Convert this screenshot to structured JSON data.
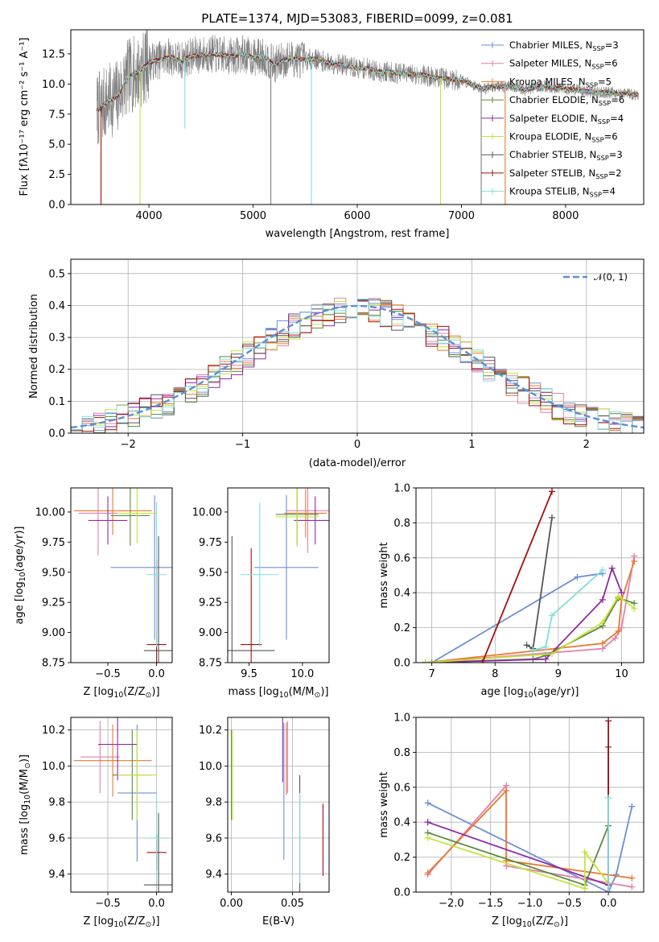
{
  "figure": {
    "title": "PLATE=1374, MJD=53083, FIBERID=0099, z=0.081"
  },
  "colors": {
    "Chabrier MILES": "#6a8fd6",
    "Salpeter MILES": "#e57fae",
    "Kroupa MILES": "#e8792d",
    "Chabrier ELODIE": "#5a8a3c",
    "Salpeter ELODIE": "#8e2aa6",
    "Kroupa ELODIE": "#c5e33a",
    "Chabrier STELIB": "#555555",
    "Salpeter STELIB": "#a01010",
    "Kroupa STELIB": "#80dede",
    "data": "#7f7f7f",
    "normal": "#5b8fd6"
  },
  "chart_data": [
    {
      "id": "spectrum",
      "type": "line",
      "title": "PLATE=1374, MJD=53083, FIBERID=0099, z=0.081",
      "xlabel": "wavelength [Angstrom, rest frame]",
      "ylabel": "Flux [fλ10⁻¹⁷ erg cm⁻² s⁻¹ A⁻¹]",
      "xlim": [
        3250,
        8750
      ],
      "ylim": [
        0,
        14.5
      ],
      "xticks": [
        4000,
        5000,
        6000,
        7000,
        8000
      ],
      "yticks": [
        0.0,
        2.5,
        5.0,
        7.5,
        10.0,
        12.5
      ],
      "grid": false,
      "legend_position": "upper right",
      "legend": [
        {
          "label": "Chabrier MILES, N",
          "sub": "SSP",
          "tail": "=3",
          "model": "Chabrier MILES"
        },
        {
          "label": "Salpeter MILES, N",
          "sub": "SSP",
          "tail": "=6",
          "model": "Salpeter MILES"
        },
        {
          "label": "Kroupa MILES, N",
          "sub": "SSP",
          "tail": "=5",
          "model": "Kroupa MILES"
        },
        {
          "label": "Chabrier ELODIE, N",
          "sub": "SSP",
          "tail": "=6",
          "model": "Chabrier ELODIE"
        },
        {
          "label": "Salpeter ELODIE, N",
          "sub": "SSP",
          "tail": "=4",
          "model": "Salpeter ELODIE"
        },
        {
          "label": "Kroupa ELODIE, N",
          "sub": "SSP",
          "tail": "=6",
          "model": "Kroupa ELODIE"
        },
        {
          "label": "Chabrier STELIB, N",
          "sub": "SSP",
          "tail": "=3",
          "model": "Chabrier STELIB"
        },
        {
          "label": "Salpeter STELIB, N",
          "sub": "SSP",
          "tail": "=2",
          "model": "Salpeter STELIB"
        },
        {
          "label": "Kroupa STELIB, N",
          "sub": "SSP",
          "tail": "=4",
          "model": "Kroupa STELIB"
        }
      ],
      "continuum": [
        [
          3500,
          7.8
        ],
        [
          3600,
          8.5
        ],
        [
          3700,
          9.0
        ],
        [
          3800,
          10.6
        ],
        [
          3900,
          11.0
        ],
        [
          4000,
          11.8
        ],
        [
          4100,
          12.0
        ],
        [
          4200,
          12.3
        ],
        [
          4300,
          11.9
        ],
        [
          4400,
          12.3
        ],
        [
          4500,
          12.4
        ],
        [
          4600,
          12.5
        ],
        [
          4700,
          12.4
        ],
        [
          4800,
          12.3
        ],
        [
          4900,
          12.5
        ],
        [
          5000,
          12.2
        ],
        [
          5100,
          12.3
        ],
        [
          5200,
          11.6
        ],
        [
          5300,
          12.0
        ],
        [
          5400,
          12.1
        ],
        [
          5500,
          12.0
        ],
        [
          5600,
          12.1
        ],
        [
          5700,
          11.8
        ],
        [
          5800,
          11.7
        ],
        [
          5900,
          11.5
        ],
        [
          6000,
          11.3
        ],
        [
          6100,
          11.3
        ],
        [
          6200,
          11.0
        ],
        [
          6300,
          11.0
        ],
        [
          6400,
          10.9
        ],
        [
          6500,
          10.8
        ],
        [
          6600,
          10.8
        ],
        [
          6700,
          10.6
        ],
        [
          6800,
          10.5
        ],
        [
          6900,
          10.4
        ],
        [
          7000,
          10.3
        ],
        [
          7100,
          10.0
        ],
        [
          7200,
          9.6
        ],
        [
          7300,
          9.8
        ],
        [
          7400,
          9.8
        ],
        [
          7500,
          9.8
        ],
        [
          7600,
          9.5
        ],
        [
          7700,
          9.7
        ],
        [
          7800,
          9.8
        ],
        [
          7900,
          9.7
        ],
        [
          8000,
          9.6
        ],
        [
          8100,
          9.5
        ],
        [
          8200,
          9.4
        ],
        [
          8300,
          9.3
        ],
        [
          8400,
          9.3
        ],
        [
          8500,
          9.2
        ],
        [
          8600,
          9.2
        ],
        [
          8700,
          9.1
        ]
      ],
      "features": [
        {
          "x": 3540,
          "y": 0.0,
          "series": "Salpeter STELIB"
        },
        {
          "x": 3915,
          "y": 0.0,
          "series": "Kroupa ELODIE"
        },
        {
          "x": 4345,
          "y": 6.3,
          "series": "Kroupa STELIB"
        },
        {
          "x": 5170,
          "y": 0.0,
          "series": "data"
        },
        {
          "x": 5560,
          "y": 0.0,
          "series": "Kroupa STELIB"
        },
        {
          "x": 6800,
          "y": 0.0,
          "series": "Kroupa ELODIE"
        },
        {
          "x": 7190,
          "y": 0.0,
          "series": "data"
        },
        {
          "x": 7420,
          "y": 0.0,
          "series": "Kroupa MILES"
        }
      ]
    },
    {
      "id": "residuals",
      "type": "line",
      "xlabel": "(data-model)/error",
      "ylabel": "Normed distribution",
      "xlim": [
        -2.5,
        2.5
      ],
      "ylim": [
        0,
        0.545
      ],
      "xticks": [
        -2,
        -1,
        0,
        1,
        2
      ],
      "yticks": [
        0.0,
        0.1,
        0.2,
        0.3,
        0.4,
        0.5
      ],
      "grid": true,
      "legend_position": "upper right",
      "normal_label": "𝒩(0, 1)",
      "bin_width": 0.1,
      "hist_series": [
        "Chabrier MILES",
        "Salpeter MILES",
        "Kroupa MILES",
        "Chabrier ELODIE",
        "Salpeter ELODIE",
        "Kroupa ELODIE",
        "Chabrier STELIB",
        "Salpeter STELIB",
        "Kroupa STELIB"
      ]
    },
    {
      "id": "age-vs-Z",
      "type": "scatter",
      "xlabel": "Z [log₁₀(Z/Z⊙)]",
      "ylabel": "age  [log₁₀(age/yr)]",
      "xlim": [
        -0.88,
        0.16
      ],
      "ylim": [
        8.75,
        10.2
      ],
      "xticks": [
        -0.5,
        0.0
      ],
      "yticks": [
        8.75,
        9.0,
        9.25,
        9.5,
        9.75,
        10.0
      ],
      "grid": false,
      "points": [
        {
          "series": "Chabrier MILES",
          "x": -0.02,
          "xerr": 0.45,
          "y": 9.54,
          "yerr": 0.6
        },
        {
          "series": "Salpeter MILES",
          "x": -0.6,
          "xerr": 0.2,
          "y": 9.99,
          "yerr": 0.35
        },
        {
          "series": "Kroupa MILES",
          "x": -0.45,
          "xerr": 0.4,
          "y": 10.01,
          "yerr": 0.2
        },
        {
          "series": "Chabrier ELODIE",
          "x": -0.27,
          "xerr": 0.2,
          "y": 9.97,
          "yerr": 0.25
        },
        {
          "series": "Salpeter ELODIE",
          "x": -0.5,
          "xerr": 0.2,
          "y": 9.93,
          "yerr": 0.2
        },
        {
          "series": "Kroupa ELODIE",
          "x": -0.2,
          "xerr": 0.2,
          "y": 9.99,
          "yerr": 0.25
        },
        {
          "series": "Chabrier STELIB",
          "x": 0.02,
          "xerr": 0.15,
          "y": 8.85,
          "yerr": 0.95
        },
        {
          "series": "Salpeter STELIB",
          "x": 0.0,
          "xerr": 0.1,
          "y": 8.9,
          "yerr": 0.7
        },
        {
          "series": "Kroupa STELIB",
          "x": 0.0,
          "xerr": 0.1,
          "y": 9.48,
          "yerr": 0.6
        }
      ]
    },
    {
      "id": "age-vs-mass",
      "type": "scatter",
      "xlabel": "mass [log₁₀(M/M⊙)]",
      "ylabel": "",
      "xlim": [
        9.3,
        10.25
      ],
      "ylim": [
        8.75,
        10.2
      ],
      "xticks": [
        9.5,
        10.0
      ],
      "yticks": [
        8.75,
        9.0,
        9.25,
        9.5,
        9.75,
        10.0
      ],
      "grid": false,
      "points": [
        {
          "series": "Chabrier MILES",
          "x": 9.85,
          "xerr": 0.3,
          "y": 9.54,
          "yerr": 0.6
        },
        {
          "series": "Salpeter MILES",
          "x": 10.05,
          "xerr": 0.2,
          "y": 10.01,
          "yerr": 0.35
        },
        {
          "series": "Kroupa MILES",
          "x": 10.03,
          "xerr": 0.2,
          "y": 9.99,
          "yerr": 0.2
        },
        {
          "series": "Chabrier ELODIE",
          "x": 9.95,
          "xerr": 0.2,
          "y": 9.98,
          "yerr": 0.25
        },
        {
          "series": "Salpeter ELODIE",
          "x": 10.12,
          "xerr": 0.2,
          "y": 9.93,
          "yerr": 0.2
        },
        {
          "series": "Kroupa ELODIE",
          "x": 9.95,
          "xerr": 0.2,
          "y": 9.96,
          "yerr": 0.25
        },
        {
          "series": "Chabrier STELIB",
          "x": 9.34,
          "xerr": 0.4,
          "y": 8.85,
          "yerr": 0.95
        },
        {
          "series": "Salpeter STELIB",
          "x": 9.52,
          "xerr": 0.1,
          "y": 8.9,
          "yerr": 0.8
        },
        {
          "series": "Kroupa STELIB",
          "x": 9.6,
          "xerr": 0.18,
          "y": 9.48,
          "yerr": 0.6
        }
      ]
    },
    {
      "id": "cumulative-age",
      "type": "line",
      "xlabel": "age  [log₁₀(age/yr)]",
      "ylabel": "mass weight",
      "xlim": [
        6.75,
        10.35
      ],
      "ylim": [
        0,
        1.0
      ],
      "xticks": [
        7,
        8,
        9,
        10
      ],
      "yticks": [
        0.0,
        0.2,
        0.4,
        0.6,
        0.8,
        1.0
      ],
      "grid": true,
      "series": [
        {
          "name": "Chabrier MILES",
          "x": [
            7.0,
            9.3,
            9.7
          ],
          "y": [
            0.0,
            0.49,
            0.51
          ]
        },
        {
          "name": "Salpeter MILES",
          "x": [
            6.9,
            9.7,
            9.9,
            10.0,
            10.2
          ],
          "y": [
            0.0,
            0.08,
            0.14,
            0.2,
            0.61
          ]
        },
        {
          "name": "Kroupa MILES",
          "x": [
            6.9,
            9.7,
            9.95,
            10.0,
            10.2
          ],
          "y": [
            0.0,
            0.11,
            0.18,
            0.36,
            0.58
          ]
        },
        {
          "name": "Chabrier ELODIE",
          "x": [
            6.9,
            8.6,
            8.8,
            9.7,
            9.95,
            10.2
          ],
          "y": [
            0.0,
            0.02,
            0.04,
            0.21,
            0.37,
            0.34
          ]
        },
        {
          "name": "Salpeter ELODIE",
          "x": [
            6.9,
            8.8,
            9.7,
            9.85,
            10.0
          ],
          "y": [
            0.0,
            0.02,
            0.36,
            0.54,
            0.4
          ]
        },
        {
          "name": "Kroupa ELODIE",
          "x": [
            6.9,
            8.9,
            9.7,
            9.95,
            10.2
          ],
          "y": [
            0.0,
            0.05,
            0.23,
            0.38,
            0.31
          ]
        },
        {
          "name": "Chabrier STELIB",
          "x": [
            8.5,
            8.6,
            8.9
          ],
          "y": [
            0.1,
            0.08,
            0.83
          ]
        },
        {
          "name": "Salpeter STELIB",
          "x": [
            7.8,
            8.9
          ],
          "y": [
            0.0,
            0.98
          ]
        },
        {
          "name": "Kroupa STELIB",
          "x": [
            8.6,
            8.8,
            8.9,
            9.7
          ],
          "y": [
            0.07,
            0.09,
            0.27,
            0.53
          ]
        }
      ]
    },
    {
      "id": "mass-vs-Z",
      "type": "scatter",
      "xlabel": "Z [log₁₀(Z/Z⊙)]",
      "ylabel": "mass [log₁₀(M/M⊙)]",
      "xlim": [
        -0.88,
        0.16
      ],
      "ylim": [
        9.3,
        10.27
      ],
      "xticks": [
        -0.5,
        0.0
      ],
      "yticks": [
        9.4,
        9.6,
        9.8,
        10.0,
        10.2
      ],
      "grid": true,
      "points": [
        {
          "series": "Chabrier MILES",
          "x": -0.2,
          "xerr": 0.2,
          "y": 9.85,
          "yerr": 0.38
        },
        {
          "series": "Salpeter MILES",
          "x": -0.58,
          "xerr": 0.2,
          "y": 10.05,
          "yerr": 0.2
        },
        {
          "series": "Kroupa MILES",
          "x": -0.45,
          "xerr": 0.4,
          "y": 10.03,
          "yerr": 0.2
        },
        {
          "series": "Chabrier ELODIE",
          "x": -0.25,
          "xerr": 0.2,
          "y": 9.95,
          "yerr": 0.25
        },
        {
          "series": "Salpeter ELODIE",
          "x": -0.4,
          "xerr": 0.2,
          "y": 10.12,
          "yerr": 0.2
        },
        {
          "series": "Kroupa ELODIE",
          "x": -0.2,
          "xerr": 0.2,
          "y": 9.95,
          "yerr": 0.25
        },
        {
          "series": "Chabrier STELIB",
          "x": 0.02,
          "xerr": 0.15,
          "y": 9.34,
          "yerr": 0.4
        },
        {
          "series": "Salpeter STELIB",
          "x": 0.0,
          "xerr": 0.1,
          "y": 9.52,
          "yerr": 0.1
        },
        {
          "series": "Kroupa STELIB",
          "x": 0.0,
          "xerr": 0.1,
          "y": 9.6,
          "yerr": 0.25
        }
      ]
    },
    {
      "id": "mass-vs-EBV",
      "type": "scatter",
      "xlabel": "E(B-V)",
      "ylabel": "",
      "xlim": [
        -0.003,
        0.08
      ],
      "ylim": [
        9.3,
        10.27
      ],
      "xticks": [
        0.0,
        0.05
      ],
      "xtick_labels": [
        "0.00",
        "0.05"
      ],
      "yticks": [
        9.4,
        9.6,
        9.8,
        10.0,
        10.2
      ],
      "grid": true,
      "points": [
        {
          "series": "Chabrier MILES",
          "x": 0.043,
          "y": 9.86,
          "yerr": 0.38
        },
        {
          "series": "Salpeter MILES",
          "x": 0.046,
          "y": 10.05,
          "yerr": 0.2
        },
        {
          "series": "Kroupa MILES",
          "x": 0.045,
          "y": 10.04,
          "yerr": 0.2
        },
        {
          "series": "Chabrier ELODIE",
          "x": 0.0,
          "y": 9.95,
          "yerr": 0.25
        },
        {
          "series": "Salpeter ELODIE",
          "x": 0.042,
          "y": 10.11,
          "yerr": 0.2
        },
        {
          "series": "Kroupa ELODIE",
          "x": 0.001,
          "y": 9.95,
          "yerr": 0.25
        },
        {
          "series": "Chabrier STELIB",
          "x": 0.056,
          "y": 9.55,
          "yerr": 0.4
        },
        {
          "series": "Salpeter STELIB",
          "x": 0.075,
          "y": 9.59,
          "yerr": 0.2
        },
        {
          "series": "Kroupa STELIB",
          "x": 0.056,
          "y": 9.6,
          "yerr": 0.25
        }
      ]
    },
    {
      "id": "cumulative-Z",
      "type": "line",
      "xlabel": "Z [log₁₀(Z/Z⊙)]",
      "ylabel": "mass weight",
      "xlim": [
        -2.45,
        0.45
      ],
      "ylim": [
        0,
        1.0
      ],
      "xticks": [
        -2.0,
        -1.5,
        -1.0,
        -0.5,
        0.0
      ],
      "yticks": [
        0.0,
        0.2,
        0.4,
        0.6,
        0.8,
        1.0
      ],
      "grid": true,
      "series": [
        {
          "name": "Chabrier MILES",
          "x": [
            -2.3,
            0.0,
            0.1,
            0.3
          ],
          "y": [
            0.51,
            0.0,
            0.1,
            0.49
          ]
        },
        {
          "name": "Salpeter MILES",
          "x": [
            -2.3,
            -1.3,
            -1.3,
            0.3
          ],
          "y": [
            0.1,
            0.61,
            0.15,
            0.03
          ]
        },
        {
          "name": "Kroupa MILES",
          "x": [
            -2.3,
            -1.3,
            -1.3,
            0.3
          ],
          "y": [
            0.11,
            0.58,
            0.18,
            0.08
          ]
        },
        {
          "name": "Chabrier ELODIE",
          "x": [
            -2.3,
            -0.3,
            0.0,
            0.0
          ],
          "y": [
            0.34,
            0.04,
            0.38,
            0.0
          ]
        },
        {
          "name": "Salpeter ELODIE",
          "x": [
            -2.3,
            0.0,
            0.0
          ],
          "y": [
            0.4,
            0.04,
            0.0
          ]
        },
        {
          "name": "Kroupa ELODIE",
          "x": [
            -2.3,
            -0.3,
            -0.3,
            0.0,
            0.0
          ],
          "y": [
            0.31,
            0.02,
            0.23,
            0.05,
            0.0
          ]
        },
        {
          "name": "Chabrier STELIB",
          "x": [
            0.0,
            0.0
          ],
          "y": [
            0.0,
            0.83
          ]
        },
        {
          "name": "Salpeter STELIB",
          "x": [
            0.0,
            0.0
          ],
          "y": [
            0.0,
            0.98
          ]
        },
        {
          "name": "Kroupa STELIB",
          "x": [
            0.0,
            0.0
          ],
          "y": [
            0.0,
            0.54
          ]
        }
      ]
    }
  ]
}
